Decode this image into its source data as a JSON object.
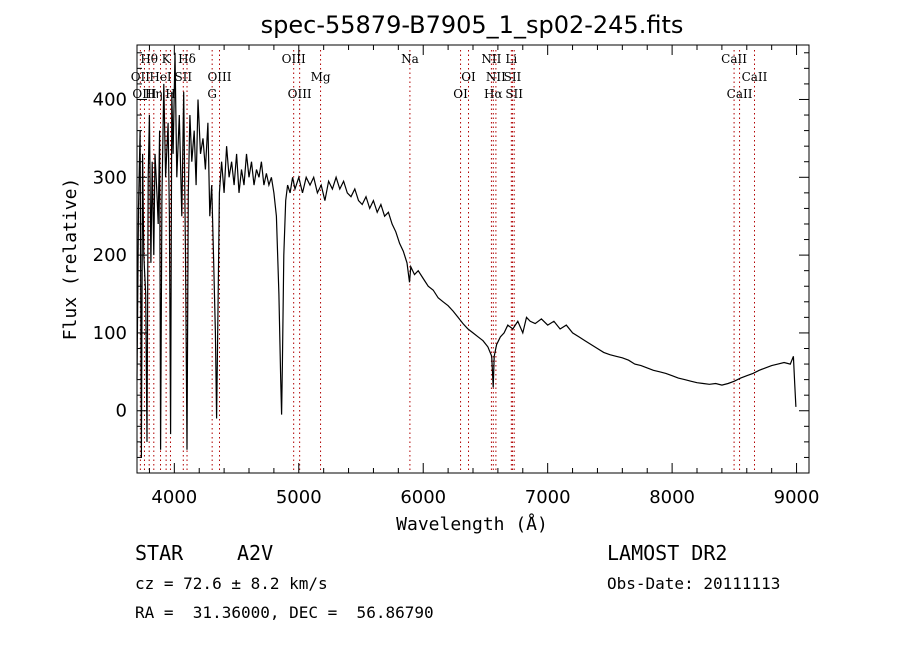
{
  "chart_data": {
    "type": "line",
    "title": "spec-55879-B7905_1_sp02-245.fits",
    "xlabel": "Wavelength (Å)",
    "ylabel": "Flux (relative)",
    "xlim": [
      3700,
      9100
    ],
    "ylim": [
      -80,
      470
    ],
    "xticks": [
      4000,
      5000,
      6000,
      7000,
      8000,
      9000
    ],
    "yticks": [
      0,
      100,
      200,
      300,
      400
    ],
    "grid": false,
    "series": [
      {
        "values": [
          [
            3700,
            40
          ],
          [
            3712,
            260
          ],
          [
            3725,
            360
          ],
          [
            3735,
            -60
          ],
          [
            3745,
            330
          ],
          [
            3755,
            200
          ],
          [
            3770,
            150
          ],
          [
            3780,
            -40
          ],
          [
            3790,
            300
          ],
          [
            3800,
            380
          ],
          [
            3812,
            190
          ],
          [
            3822,
            320
          ],
          [
            3835,
            200
          ],
          [
            3845,
            330
          ],
          [
            3860,
            280
          ],
          [
            3870,
            240
          ],
          [
            3882,
            360
          ],
          [
            3890,
            -50
          ],
          [
            3900,
            270
          ],
          [
            3915,
            420
          ],
          [
            3930,
            300
          ],
          [
            3950,
            370
          ],
          [
            3960,
            250
          ],
          [
            3970,
            -30
          ],
          [
            3980,
            410
          ],
          [
            3990,
            330
          ],
          [
            4005,
            460
          ],
          [
            4020,
            300
          ],
          [
            4040,
            380
          ],
          [
            4060,
            250
          ],
          [
            4075,
            410
          ],
          [
            4090,
            200
          ],
          [
            4102,
            -50
          ],
          [
            4112,
            280
          ],
          [
            4125,
            380
          ],
          [
            4140,
            320
          ],
          [
            4160,
            360
          ],
          [
            4175,
            290
          ],
          [
            4190,
            400
          ],
          [
            4210,
            330
          ],
          [
            4230,
            350
          ],
          [
            4250,
            310
          ],
          [
            4270,
            370
          ],
          [
            4285,
            250
          ],
          [
            4300,
            290
          ],
          [
            4315,
            200
          ],
          [
            4330,
            100
          ],
          [
            4340,
            -10
          ],
          [
            4350,
            120
          ],
          [
            4362,
            280
          ],
          [
            4380,
            320
          ],
          [
            4400,
            280
          ],
          [
            4420,
            340
          ],
          [
            4440,
            300
          ],
          [
            4460,
            320
          ],
          [
            4480,
            290
          ],
          [
            4500,
            330
          ],
          [
            4520,
            280
          ],
          [
            4540,
            310
          ],
          [
            4560,
            290
          ],
          [
            4580,
            330
          ],
          [
            4600,
            300
          ],
          [
            4620,
            320
          ],
          [
            4640,
            290
          ],
          [
            4660,
            310
          ],
          [
            4680,
            300
          ],
          [
            4700,
            320
          ],
          [
            4720,
            290
          ],
          [
            4740,
            305
          ],
          [
            4760,
            290
          ],
          [
            4780,
            300
          ],
          [
            4800,
            280
          ],
          [
            4820,
            250
          ],
          [
            4840,
            150
          ],
          [
            4855,
            40
          ],
          [
            4862,
            -5
          ],
          [
            4868,
            60
          ],
          [
            4880,
            200
          ],
          [
            4895,
            270
          ],
          [
            4910,
            290
          ],
          [
            4930,
            280
          ],
          [
            4950,
            300
          ],
          [
            4970,
            285
          ],
          [
            5000,
            300
          ],
          [
            5030,
            280
          ],
          [
            5060,
            300
          ],
          [
            5090,
            290
          ],
          [
            5120,
            300
          ],
          [
            5150,
            280
          ],
          [
            5180,
            290
          ],
          [
            5210,
            270
          ],
          [
            5240,
            295
          ],
          [
            5270,
            285
          ],
          [
            5300,
            300
          ],
          [
            5330,
            285
          ],
          [
            5360,
            295
          ],
          [
            5390,
            280
          ],
          [
            5420,
            275
          ],
          [
            5450,
            285
          ],
          [
            5480,
            270
          ],
          [
            5510,
            265
          ],
          [
            5540,
            275
          ],
          [
            5570,
            260
          ],
          [
            5600,
            270
          ],
          [
            5630,
            255
          ],
          [
            5660,
            265
          ],
          [
            5690,
            250
          ],
          [
            5720,
            255
          ],
          [
            5750,
            240
          ],
          [
            5780,
            230
          ],
          [
            5810,
            215
          ],
          [
            5840,
            205
          ],
          [
            5870,
            190
          ],
          [
            5890,
            165
          ],
          [
            5900,
            185
          ],
          [
            5930,
            175
          ],
          [
            5960,
            180
          ],
          [
            6000,
            170
          ],
          [
            6040,
            160
          ],
          [
            6080,
            155
          ],
          [
            6120,
            145
          ],
          [
            6160,
            140
          ],
          [
            6200,
            135
          ],
          [
            6240,
            128
          ],
          [
            6280,
            120
          ],
          [
            6320,
            112
          ],
          [
            6360,
            105
          ],
          [
            6400,
            100
          ],
          [
            6440,
            95
          ],
          [
            6480,
            90
          ],
          [
            6520,
            82
          ],
          [
            6550,
            70
          ],
          [
            6562,
            30
          ],
          [
            6570,
            70
          ],
          [
            6590,
            85
          ],
          [
            6620,
            95
          ],
          [
            6650,
            100
          ],
          [
            6680,
            110
          ],
          [
            6720,
            105
          ],
          [
            6760,
            115
          ],
          [
            6800,
            100
          ],
          [
            6830,
            120
          ],
          [
            6860,
            115
          ],
          [
            6900,
            112
          ],
          [
            6950,
            118
          ],
          [
            7000,
            110
          ],
          [
            7050,
            115
          ],
          [
            7100,
            105
          ],
          [
            7150,
            110
          ],
          [
            7200,
            100
          ],
          [
            7250,
            95
          ],
          [
            7300,
            90
          ],
          [
            7350,
            85
          ],
          [
            7400,
            80
          ],
          [
            7450,
            75
          ],
          [
            7500,
            72
          ],
          [
            7550,
            70
          ],
          [
            7600,
            68
          ],
          [
            7650,
            65
          ],
          [
            7700,
            60
          ],
          [
            7750,
            58
          ],
          [
            7800,
            55
          ],
          [
            7850,
            52
          ],
          [
            7900,
            50
          ],
          [
            7950,
            48
          ],
          [
            8000,
            45
          ],
          [
            8050,
            42
          ],
          [
            8100,
            40
          ],
          [
            8150,
            38
          ],
          [
            8200,
            36
          ],
          [
            8250,
            35
          ],
          [
            8300,
            34
          ],
          [
            8350,
            35
          ],
          [
            8400,
            33
          ],
          [
            8450,
            35
          ],
          [
            8500,
            38
          ],
          [
            8550,
            42
          ],
          [
            8600,
            45
          ],
          [
            8650,
            48
          ],
          [
            8700,
            52
          ],
          [
            8750,
            55
          ],
          [
            8800,
            58
          ],
          [
            8850,
            60
          ],
          [
            8900,
            62
          ],
          [
            8950,
            60
          ],
          [
            8975,
            70
          ],
          [
            8985,
            35
          ],
          [
            8995,
            5
          ]
        ]
      }
    ],
    "line_labels": [
      {
        "label": "Hθ",
        "x": 3798,
        "row": 1,
        "color": "#b00000"
      },
      {
        "label": "K",
        "x": 3934,
        "row": 1,
        "color": "#b00000"
      },
      {
        "label": "Hδ",
        "x": 4102,
        "row": 1,
        "color": "#b00000"
      },
      {
        "label": "OIII",
        "x": 4959,
        "row": 1,
        "color": "#b00000"
      },
      {
        "label": "Na",
        "x": 5893,
        "row": 1,
        "color": "#b00000"
      },
      {
        "label": "NII",
        "x": 6548,
        "row": 1,
        "color": "#b00000"
      },
      {
        "label": "Li",
        "x": 6708,
        "row": 1,
        "color": "#b00000"
      },
      {
        "label": "CaII",
        "x": 8498,
        "row": 1,
        "color": "#b00000"
      },
      {
        "label": "OII",
        "x": 3727,
        "row": 2,
        "color": "#b00000"
      },
      {
        "label": "HeI",
        "x": 3889,
        "row": 2,
        "color": "#b00000"
      },
      {
        "label": "SII",
        "x": 4072,
        "row": 2,
        "color": "#b00000"
      },
      {
        "label": "OIII",
        "x": 4363,
        "row": 2,
        "color": "#b00000"
      },
      {
        "label": "Mg",
        "x": 5175,
        "row": 2,
        "color": "#b00000"
      },
      {
        "label": "OI",
        "x": 6364,
        "row": 2,
        "color": "#b00000"
      },
      {
        "label": "NII",
        "x": 6584,
        "row": 2,
        "color": "#b00000"
      },
      {
        "label": "SII",
        "x": 6717,
        "row": 2,
        "color": "#b00000"
      },
      {
        "label": "CaII",
        "x": 8662,
        "row": 2,
        "color": "#b00000"
      },
      {
        "label": "OIII",
        "x": 3760,
        "row": 3,
        "color": "#b00000"
      },
      {
        "label": "Hη",
        "x": 3835,
        "row": 3,
        "color": "#b00000"
      },
      {
        "label": "H",
        "x": 3969,
        "row": 3,
        "color": "#b00000"
      },
      {
        "label": "G",
        "x": 4304,
        "row": 3,
        "color": "#b00000"
      },
      {
        "label": "OIII",
        "x": 5007,
        "row": 3,
        "color": "#b00000"
      },
      {
        "label": "OI",
        "x": 6300,
        "row": 3,
        "color": "#b00000"
      },
      {
        "label": "Hα",
        "x": 6563,
        "row": 3,
        "color": "#b00000"
      },
      {
        "label": "SII",
        "x": 6731,
        "row": 3,
        "color": "#b00000"
      },
      {
        "label": "CaII",
        "x": 8542,
        "row": 3,
        "color": "#b00000"
      }
    ]
  },
  "info": {
    "object_class": "STAR",
    "subclass": "A2V",
    "survey": "LAMOST DR2",
    "cz_line": "cz = 72.6 ± 8.2 km/s",
    "obs_date_line": "Obs-Date: 20111113",
    "coords_line": "RA =  31.36000, DEC =  56.86790"
  },
  "colors": {
    "axis": "#000000",
    "spectrum": "#000000",
    "line_marker": "#b00000"
  }
}
